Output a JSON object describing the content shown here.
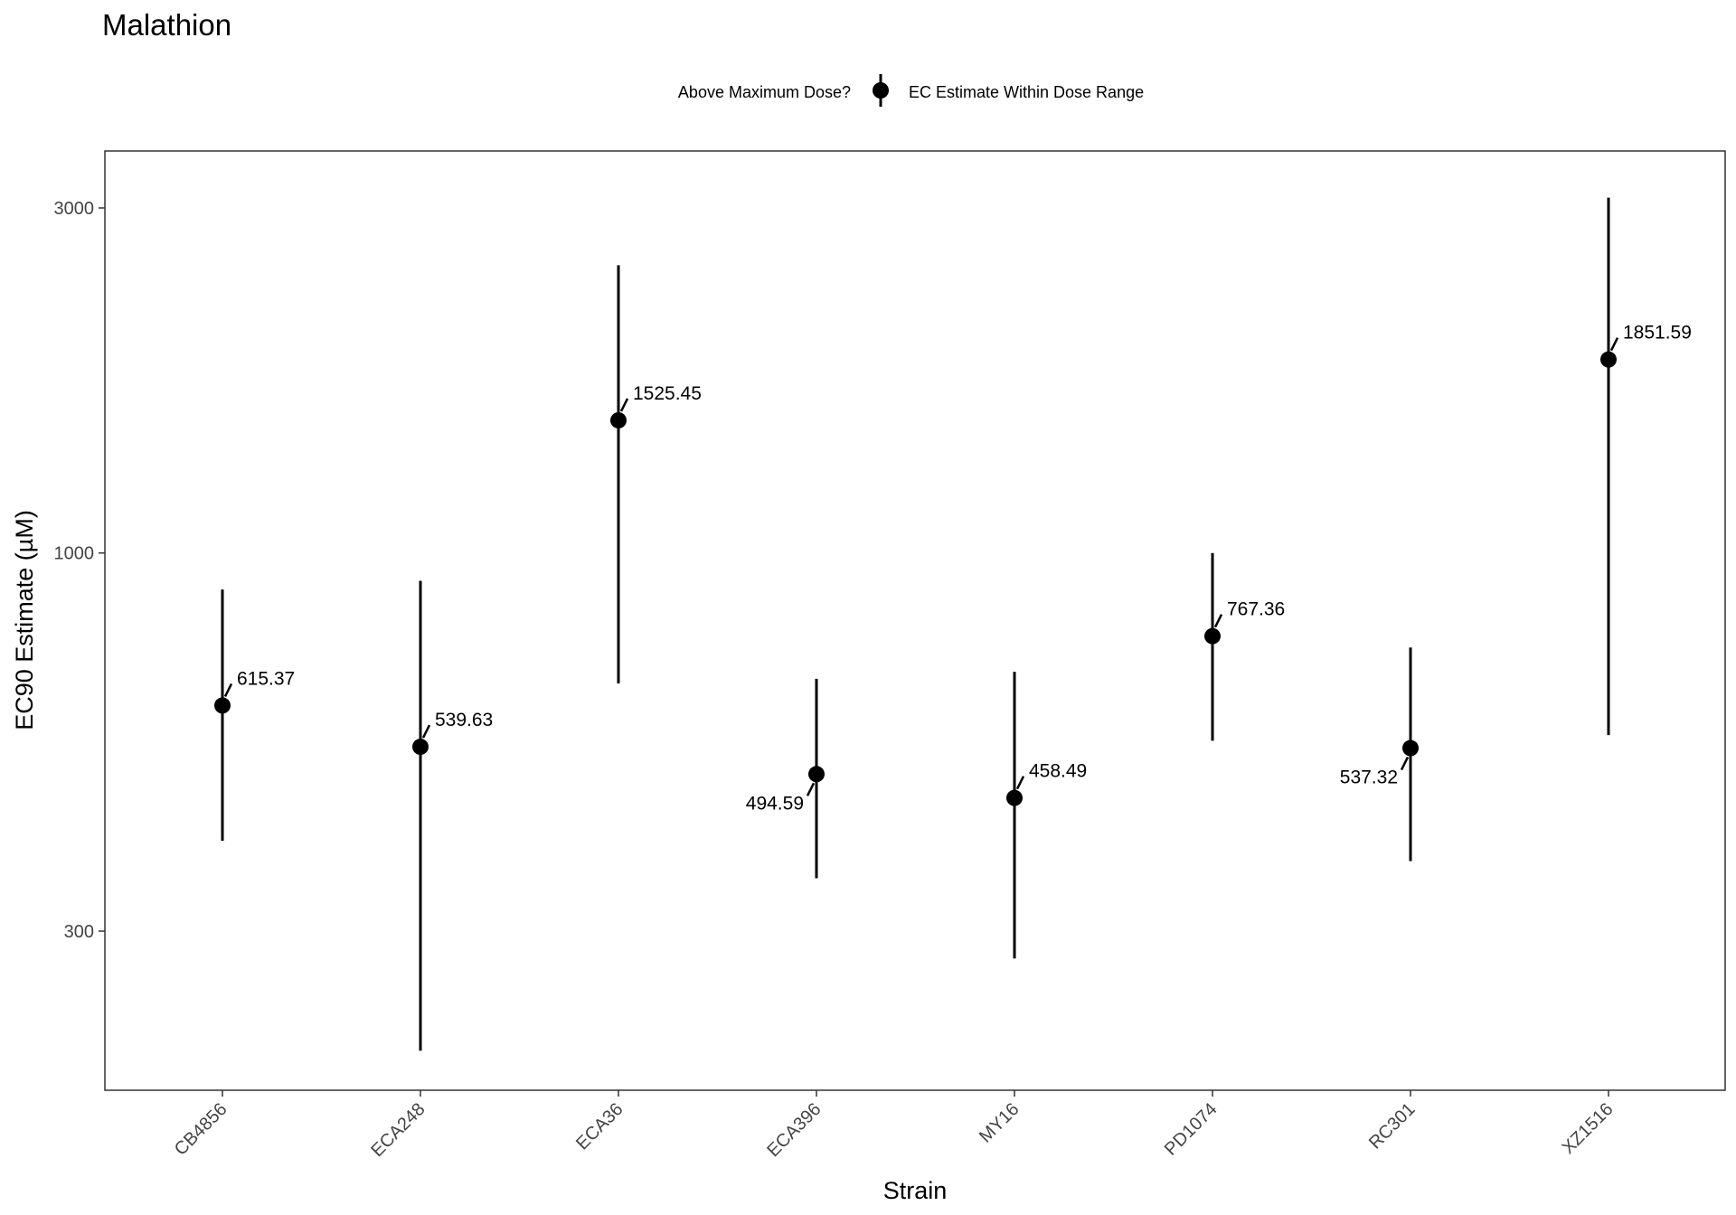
{
  "chart_data": {
    "type": "scatter",
    "title": "Malathion",
    "xlabel": "Strain",
    "ylabel": "EC90 Estimate (µM)",
    "y_scale": "log",
    "ylim": [
      190,
      3300
    ],
    "y_ticks": [
      300,
      1000,
      3000
    ],
    "y_tick_labels": [
      "300",
      "1000",
      "3000"
    ],
    "categories": [
      "CB4856",
      "ECA248",
      "ECA36",
      "ECA396",
      "MY16",
      "PD1074",
      "RC301",
      "XZ1516"
    ],
    "legend": {
      "title": "Above Maximum Dose?",
      "entries": [
        "EC Estimate Within Dose Range"
      ],
      "position": "top"
    },
    "grid": false,
    "series": [
      {
        "name": "EC Estimate Within Dose Range",
        "points": [
          {
            "strain": "CB4856",
            "value": 615.37,
            "lower": 400,
            "upper": 890,
            "label": "615.37",
            "label_side": "right"
          },
          {
            "strain": "ECA248",
            "value": 539.63,
            "lower": 205,
            "upper": 915,
            "label": "539.63",
            "label_side": "right"
          },
          {
            "strain": "ECA36",
            "value": 1525.45,
            "lower": 660,
            "upper": 2500,
            "label": "1525.45",
            "label_side": "right"
          },
          {
            "strain": "ECA396",
            "value": 494.59,
            "lower": 355,
            "upper": 670,
            "label": "494.59",
            "label_side": "left"
          },
          {
            "strain": "MY16",
            "value": 458.49,
            "lower": 275,
            "upper": 685,
            "label": "458.49",
            "label_side": "right"
          },
          {
            "strain": "PD1074",
            "value": 767.36,
            "lower": 550,
            "upper": 1000,
            "label": "767.36",
            "label_side": "right"
          },
          {
            "strain": "RC301",
            "value": 537.32,
            "lower": 375,
            "upper": 740,
            "label": "537.32",
            "label_side": "left"
          },
          {
            "strain": "XZ1516",
            "value": 1851.59,
            "lower": 560,
            "upper": 3100,
            "label": "1851.59",
            "label_side": "right"
          }
        ]
      }
    ],
    "colors": {
      "marker": "#000000",
      "panel_border": "#333333",
      "tick_text": "#444444"
    }
  }
}
